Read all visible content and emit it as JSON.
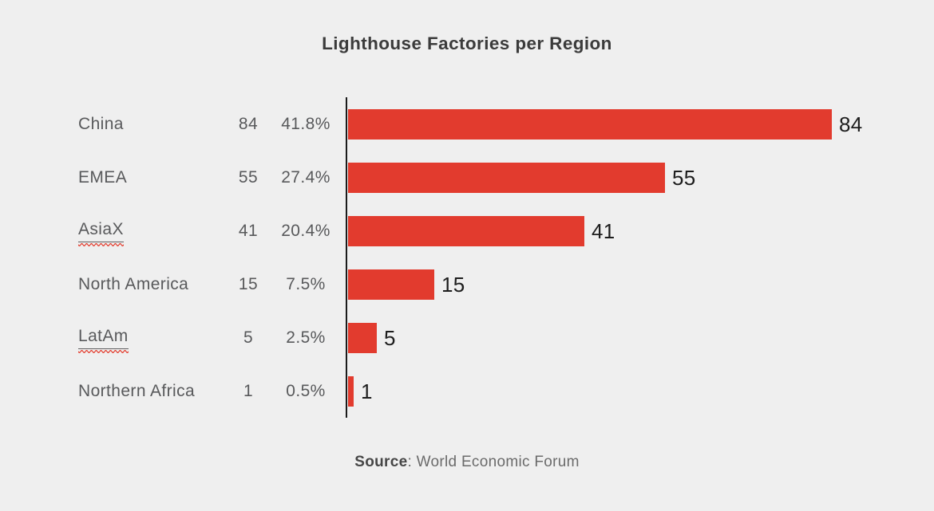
{
  "title": "Lighthouse Factories per Region",
  "source": {
    "label": "Source",
    "separator": ": ",
    "text": "World Economic Forum"
  },
  "colors": {
    "background": "#efefef",
    "bar": "#e23b2e",
    "axis": "#1b1b1b",
    "text_gray": "#58595b",
    "title": "#3b3b3b",
    "value_label": "#1d1d1d",
    "squiggle": "#e33a2b",
    "underline": "#5f5f61"
  },
  "rows": [
    {
      "region": "China",
      "value": "84",
      "percent": "41.8%",
      "numeric": 84,
      "misspelled": false
    },
    {
      "region": "EMEA",
      "value": "55",
      "percent": "27.4%",
      "numeric": 55,
      "misspelled": false
    },
    {
      "region": "AsiaX",
      "value": "41",
      "percent": "20.4%",
      "numeric": 41,
      "misspelled": true
    },
    {
      "region": "North America",
      "value": "15",
      "percent": "7.5%",
      "numeric": 15,
      "misspelled": false
    },
    {
      "region": "LatAm",
      "value": "5",
      "percent": "2.5%",
      "numeric": 5,
      "misspelled": true
    },
    {
      "region": "Northern Africa",
      "value": "1",
      "percent": "0.5%",
      "numeric": 1,
      "misspelled": false
    }
  ],
  "chart_data": {
    "type": "bar",
    "orientation": "horizontal",
    "title": "Lighthouse Factories per Region",
    "categories": [
      "China",
      "EMEA",
      "AsiaX",
      "North America",
      "LatAm",
      "Northern Africa"
    ],
    "values": [
      84,
      55,
      41,
      15,
      5,
      1
    ],
    "percent_labels": [
      "41.8%",
      "27.4%",
      "20.4%",
      "7.5%",
      "2.5%",
      "0.5%"
    ],
    "value_labels_shown": true,
    "xlim": [
      0,
      84
    ],
    "grid": false,
    "legend": false,
    "bar_color": "#e23b2e",
    "source": "Source: World Economic Forum"
  }
}
